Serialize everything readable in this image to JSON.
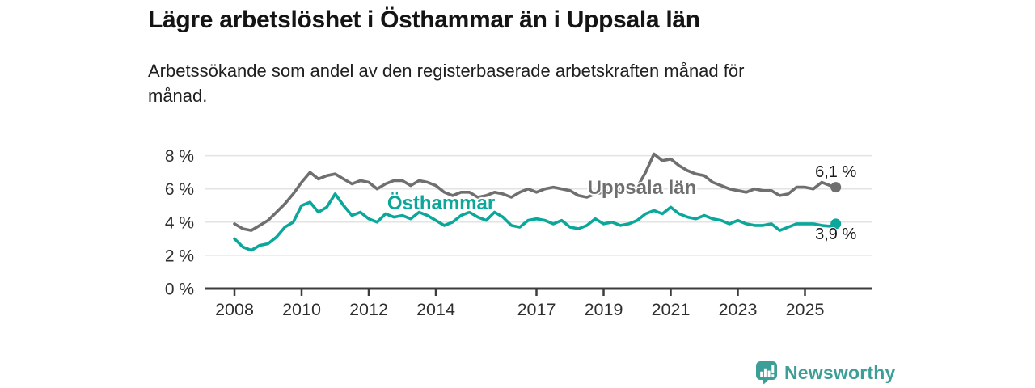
{
  "header": {
    "title": "Lägre arbetslöshet i Östhammar än i Uppsala län",
    "subtitle": "Arbetssökande som andel av den registerbaserade arbetskraften månad för månad."
  },
  "footer": {
    "brand": "Newsworthy",
    "brand_color": "#3b9e97",
    "logo_icon": "bar-chart-speech-bubble-icon"
  },
  "colors": {
    "title_text": "#141414",
    "axis_line": "#3c3c3c",
    "tick_text": "#2f2f2f",
    "gridline": "#e3e3e3",
    "uppsala_gray": "#6f6f6f",
    "osthammar_teal": "#0ba79a"
  },
  "chart_data": {
    "type": "line",
    "title": "Lägre arbetslöshet i Östhammar än i Uppsala län",
    "subtitle": "Arbetssökande som andel av den registerbaserade arbetskraften månad för månad.",
    "xlabel": "",
    "ylabel": "",
    "grid": "horizontal",
    "legend_position": "inline-labels",
    "x_unit": "year (monthly data)",
    "y_unit": "percent of labour force",
    "x_start": 2008,
    "x_step": 0.25,
    "x_last": 2025.92,
    "xlim": [
      2007.1,
      2027.0
    ],
    "ylim": [
      0,
      8.75
    ],
    "x_ticks": [
      2008,
      2010,
      2012,
      2014,
      2017,
      2019,
      2021,
      2023,
      2025
    ],
    "y_ticks": [
      0,
      2,
      4,
      6,
      8
    ],
    "y_tick_suffix": " %",
    "series": [
      {
        "id": "uppsala-lan",
        "name": "Uppsala län",
        "color": "#6f6f6f",
        "end_label": "6,1 %",
        "end_value": 6.1,
        "end_label_side": "above",
        "label_pos": {
          "x": 2018.52,
          "y": 6.08
        },
        "values": [
          3.9,
          3.6,
          3.5,
          3.8,
          4.1,
          4.6,
          5.1,
          5.7,
          6.4,
          7.0,
          6.6,
          6.8,
          6.9,
          6.6,
          6.3,
          6.5,
          6.4,
          6.0,
          6.3,
          6.5,
          6.5,
          6.2,
          6.5,
          6.4,
          6.2,
          5.8,
          5.6,
          5.8,
          5.8,
          5.5,
          5.6,
          5.8,
          5.7,
          5.5,
          5.8,
          6.0,
          5.8,
          6.0,
          6.1,
          6.0,
          5.9,
          5.6,
          5.5,
          5.7,
          5.8,
          5.9,
          6.0,
          6.0,
          6.1,
          7.0,
          8.1,
          7.7,
          7.8,
          7.4,
          7.1,
          6.9,
          6.8,
          6.4,
          6.2,
          6.0,
          5.9,
          5.8,
          6.0,
          5.9,
          5.9,
          5.6,
          5.7,
          6.1,
          6.1,
          6.0,
          6.4,
          6.2,
          6.1
        ]
      },
      {
        "id": "osthammar",
        "name": "Östhammar",
        "color": "#0ba79a",
        "end_label": "3,9 %",
        "end_value": 3.9,
        "end_label_side": "below",
        "label_pos": {
          "x": 2012.55,
          "y": 5.15
        },
        "values": [
          3.0,
          2.5,
          2.3,
          2.6,
          2.7,
          3.1,
          3.7,
          4.0,
          5.0,
          5.2,
          4.6,
          4.9,
          5.7,
          5.0,
          4.4,
          4.6,
          4.2,
          4.0,
          4.5,
          4.3,
          4.4,
          4.2,
          4.6,
          4.4,
          4.1,
          3.8,
          4.0,
          4.4,
          4.6,
          4.3,
          4.1,
          4.6,
          4.3,
          3.8,
          3.7,
          4.1,
          4.2,
          4.1,
          3.9,
          4.1,
          3.7,
          3.6,
          3.8,
          4.2,
          3.9,
          4.0,
          3.8,
          3.9,
          4.1,
          4.5,
          4.7,
          4.5,
          4.9,
          4.5,
          4.3,
          4.2,
          4.4,
          4.2,
          4.1,
          3.9,
          4.1,
          3.9,
          3.8,
          3.8,
          3.9,
          3.5,
          3.7,
          3.9,
          3.9,
          3.9,
          3.8,
          3.75,
          3.9
        ]
      }
    ]
  }
}
